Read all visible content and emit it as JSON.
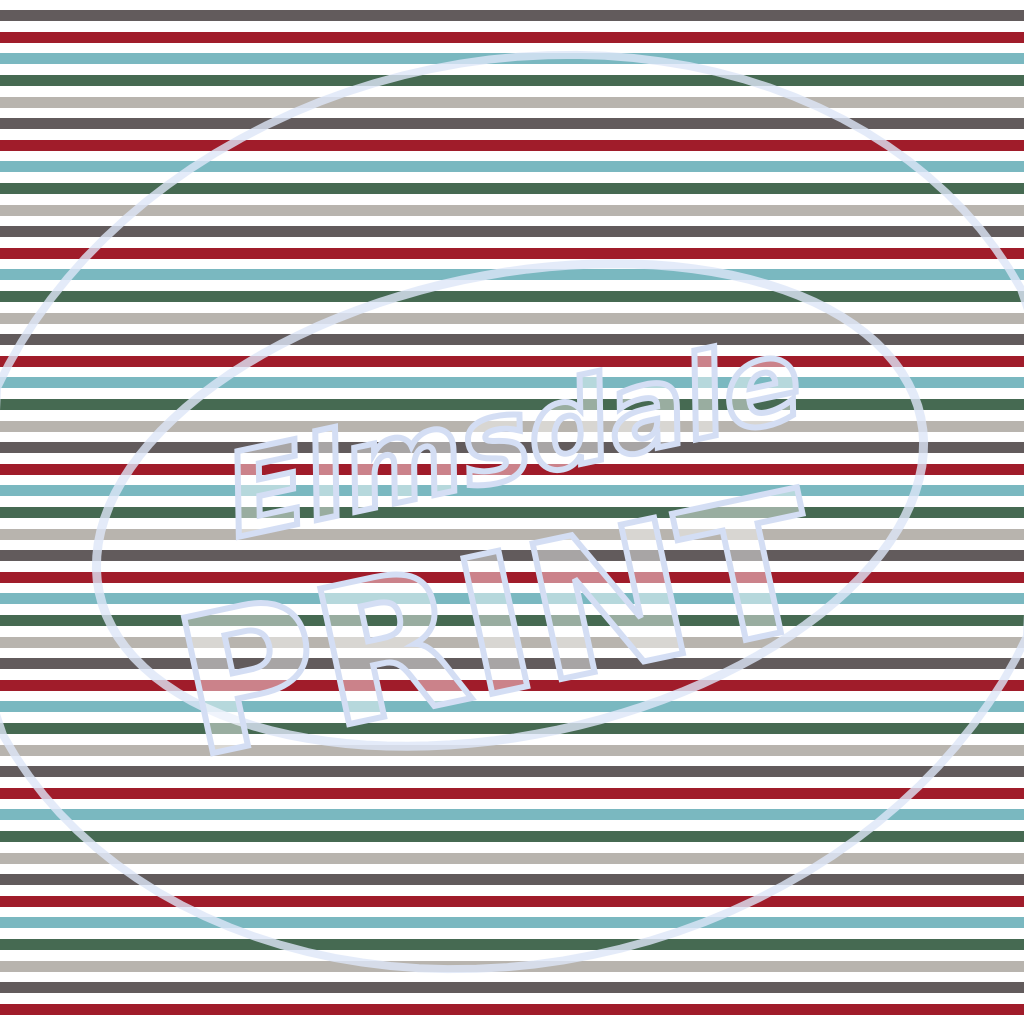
{
  "pattern": {
    "stripe_colors": [
      "#625b5c",
      "#a01c2a",
      "#7ab8c0",
      "#466a52",
      "#b8b4ae"
    ],
    "background": "#ffffff"
  },
  "watermark": {
    "line1": "Elmsdale",
    "line2": "PRINT",
    "color": "#c8d6f0"
  }
}
